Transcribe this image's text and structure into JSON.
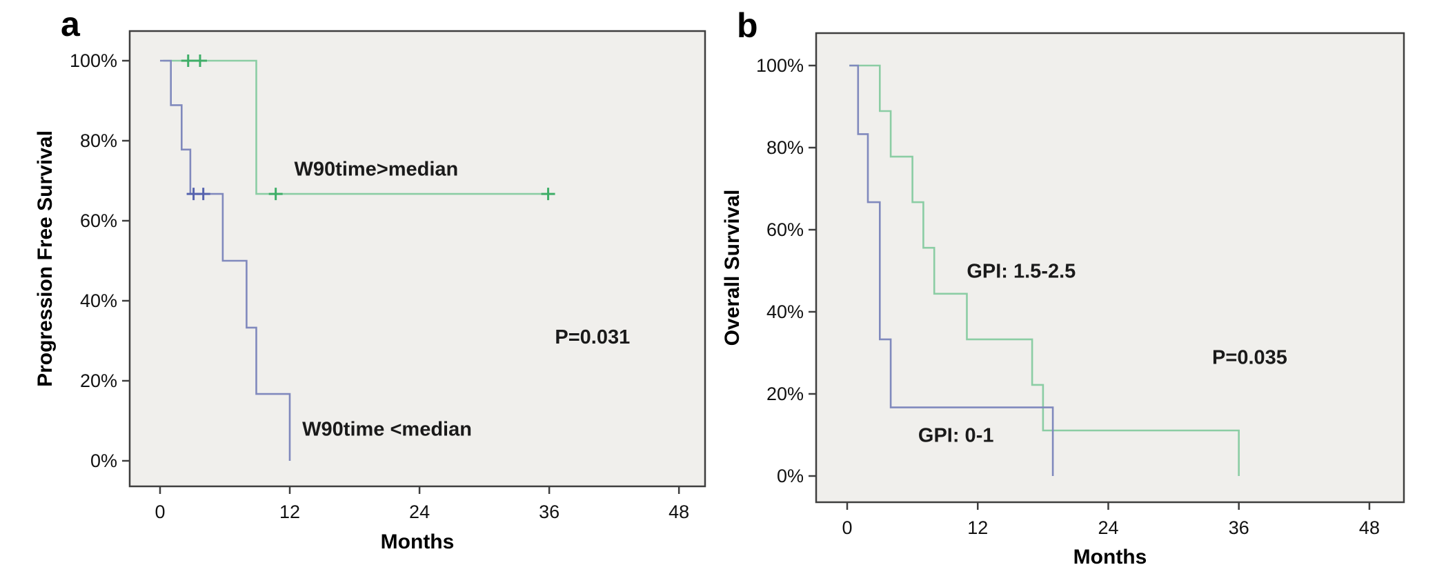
{
  "figure": {
    "background_color": "#ffffff",
    "plot_background_color": "#f0efec",
    "frame_color": "#3e3e3e",
    "panels": [
      {
        "letter": "a",
        "y_axis_title": "Progression Free Survival",
        "x_axis_title": "Months",
        "p_value": "P=0.031"
      },
      {
        "letter": "b",
        "y_axis_title": "Overall Survival",
        "x_axis_title": "Months",
        "p_value": "P=0.035"
      }
    ]
  },
  "chart_data": [
    {
      "type": "line",
      "subtype": "kaplan-meier-step",
      "panel": "a",
      "xlabel": "Months",
      "ylabel": "Progression Free Survival",
      "xlim": [
        -3,
        50
      ],
      "ylim": [
        0,
        107
      ],
      "x_ticks": [
        0,
        12,
        24,
        36,
        48
      ],
      "x_tick_labels": [
        "0",
        "12",
        "24",
        "36",
        "48"
      ],
      "y_ticks": [
        0,
        20,
        40,
        60,
        80,
        100
      ],
      "y_tick_labels": [
        "0%",
        "20%",
        "40%",
        "60%",
        "80%",
        "100%"
      ],
      "grid": false,
      "legend": "labels drawn inside plot",
      "p_value": "P=0.031",
      "series": [
        {
          "name": "W90time>median",
          "color": "#8bcda4",
          "censor_color": "#3fae68",
          "points": [
            [
              0.3,
              100
            ],
            [
              8.9,
              100
            ],
            [
              8.9,
              66.7
            ],
            [
              35.9,
              66.7
            ]
          ],
          "censors": [
            [
              2.6,
              100
            ],
            [
              3.7,
              100
            ],
            [
              10.7,
              66.7
            ],
            [
              35.9,
              66.7
            ]
          ]
        },
        {
          "name": "W90time <median",
          "color": "#8089bd",
          "censor_color": "#5663ae",
          "points": [
            [
              0,
              100
            ],
            [
              1,
              100
            ],
            [
              1,
              88.9
            ],
            [
              2,
              88.9
            ],
            [
              2,
              77.8
            ],
            [
              2.8,
              77.8
            ],
            [
              2.8,
              66.7
            ],
            [
              5.8,
              66.7
            ],
            [
              5.8,
              50
            ],
            [
              8,
              50
            ],
            [
              8,
              33.3
            ],
            [
              8.9,
              33.3
            ],
            [
              8.9,
              16.7
            ],
            [
              12,
              16.7
            ],
            [
              12,
              0
            ]
          ],
          "censors": [
            [
              3.1,
              66.7
            ],
            [
              4.0,
              66.7
            ]
          ]
        }
      ],
      "annotations": [
        {
          "kind": "curve-label",
          "text": "W90time>median",
          "x": 20,
          "y": 73
        },
        {
          "kind": "curve-label",
          "text": "W90time <median",
          "x": 21,
          "y": 8
        },
        {
          "kind": "p-value",
          "text": "P=0.031",
          "x": 40,
          "y": 31
        }
      ]
    },
    {
      "type": "line",
      "subtype": "kaplan-meier-step",
      "panel": "b",
      "xlabel": "Months",
      "ylabel": "Overall Survival",
      "xlim": [
        -3,
        50
      ],
      "ylim": [
        0,
        107
      ],
      "x_ticks": [
        0,
        12,
        24,
        36,
        48
      ],
      "x_tick_labels": [
        "0",
        "12",
        "24",
        "36",
        "48"
      ],
      "y_ticks": [
        0,
        20,
        40,
        60,
        80,
        100
      ],
      "y_tick_labels": [
        "0%",
        "20%",
        "40%",
        "60%",
        "80%",
        "100%"
      ],
      "grid": false,
      "legend": "labels drawn inside plot",
      "p_value": "P=0.035",
      "series": [
        {
          "name": "GPI: 1.5-2.5",
          "color": "#8bcda4",
          "censor_color": "#3fae68",
          "points": [
            [
              0.2,
              100
            ],
            [
              3,
              100
            ],
            [
              3,
              88.9
            ],
            [
              4,
              88.9
            ],
            [
              4,
              77.8
            ],
            [
              6,
              77.8
            ],
            [
              6,
              66.7
            ],
            [
              7,
              66.7
            ],
            [
              7,
              55.6
            ],
            [
              8,
              55.6
            ],
            [
              8,
              44.4
            ],
            [
              11,
              44.4
            ],
            [
              11,
              33.3
            ],
            [
              17,
              33.3
            ],
            [
              17,
              22.2
            ],
            [
              18,
              22.2
            ],
            [
              18,
              11.1
            ],
            [
              36,
              11.1
            ],
            [
              36,
              0
            ]
          ],
          "censors": []
        },
        {
          "name": "GPI: 0-1",
          "color": "#8089bd",
          "censor_color": "#5663ae",
          "points": [
            [
              0.2,
              100
            ],
            [
              1,
              100
            ],
            [
              1,
              83.3
            ],
            [
              1.9,
              83.3
            ],
            [
              1.9,
              66.7
            ],
            [
              3,
              66.7
            ],
            [
              3,
              33.3
            ],
            [
              4,
              33.3
            ],
            [
              4,
              16.7
            ],
            [
              18.9,
              16.7
            ],
            [
              18.9,
              0
            ]
          ],
          "censors": []
        }
      ],
      "annotations": [
        {
          "kind": "curve-label",
          "text": "GPI: 1.5-2.5",
          "x": 16,
          "y": 50
        },
        {
          "kind": "curve-label",
          "text": "GPI: 0-1",
          "x": 10,
          "y": 10
        },
        {
          "kind": "p-value",
          "text": "P=0.035",
          "x": 37,
          "y": 29
        }
      ]
    }
  ]
}
